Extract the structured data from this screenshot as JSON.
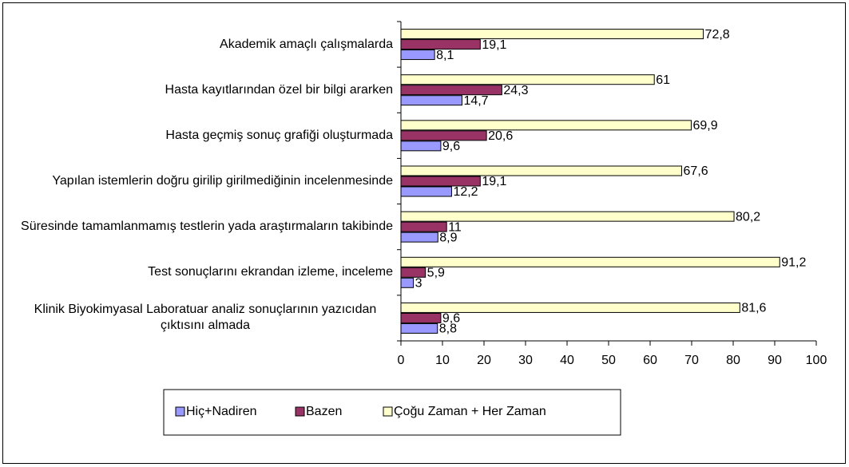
{
  "chart_data": {
    "type": "hbar",
    "categories": [
      "Akademik amaçlı çalışmalarda",
      "Hasta kayıtlarından özel bir bilgi ararken",
      "Hasta geçmiş sonuç grafiği oluşturmada",
      "Yapılan istemlerin doğru girilip girilmediğinin incelenmesinde",
      "Süresinde tamamlanmamış testlerin yada araştırmaların takibinde",
      "Test sonuçlarını ekrandan izleme, inceleme",
      "Klinik Biyokimyasal Laboratuar analiz sonuçlarının yazıcıdan çıktısını almada"
    ],
    "series": [
      {
        "name": "Hiç+Nadiren",
        "color": "#9999ff",
        "values": [
          8.1,
          14.7,
          9.6,
          12.2,
          8.9,
          3,
          8.8
        ],
        "value_labels": [
          "8,1",
          "14,7",
          "9,6",
          "12,2",
          "8,9",
          "3",
          "8,8"
        ]
      },
      {
        "name": "Bazen",
        "color": "#993366",
        "values": [
          19.1,
          24.3,
          20.6,
          19.1,
          11,
          5.9,
          9.6
        ],
        "value_labels": [
          "19,1",
          "24,3",
          "20,6",
          "19,1",
          "11",
          "5,9",
          "9,6"
        ]
      },
      {
        "name": "Çoğu Zaman + Her Zaman",
        "color": "#ffffcc",
        "values": [
          72.8,
          61,
          69.9,
          67.6,
          80.2,
          91.2,
          81.6
        ],
        "value_labels": [
          "72,8",
          "61",
          "69,9",
          "67,6",
          "80,2",
          "91,2",
          "81,6"
        ]
      }
    ],
    "xlim": [
      0,
      100
    ],
    "xticks": [
      0,
      10,
      20,
      30,
      40,
      50,
      60,
      70,
      80,
      90,
      100
    ],
    "legend": "bottom"
  }
}
